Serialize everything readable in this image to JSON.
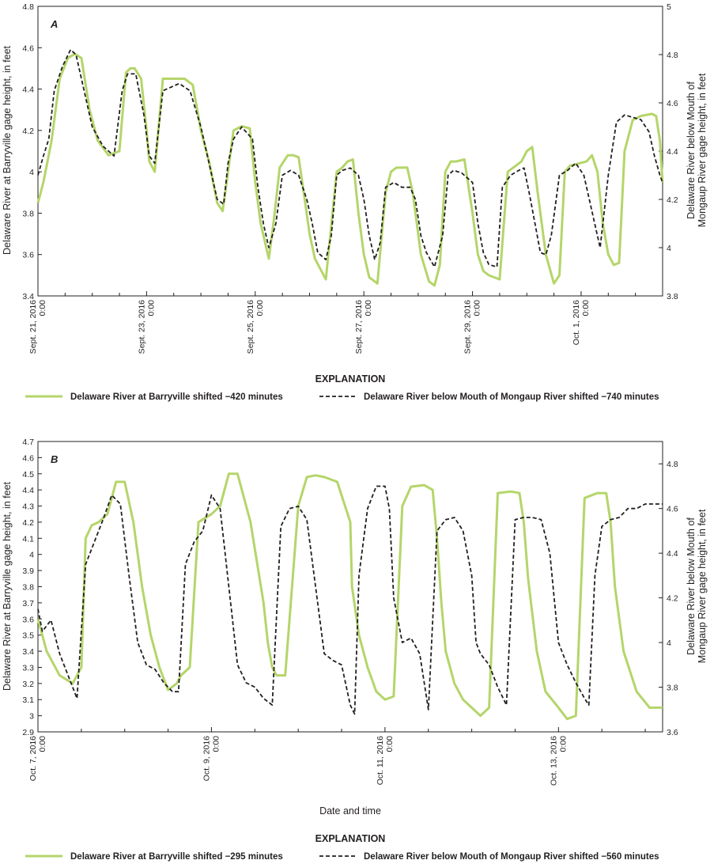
{
  "colors": {
    "barryville": "#b5d56a",
    "mongaup": "#231f20",
    "axis": "#231f20"
  },
  "chart_data": [
    {
      "type": "line",
      "panel_label": "A",
      "x_unit": "days since Sept. 21, 2016 0:00",
      "xlim": [
        0,
        11.5
      ],
      "xticks": [
        {
          "x": 0,
          "line1": "Sept. 21, 2016",
          "line2": "0:00"
        },
        {
          "x": 2,
          "line1": "Sept. 23, 2016",
          "line2": "0:00"
        },
        {
          "x": 4,
          "line1": "Sept. 25, 2016",
          "line2": "0:00"
        },
        {
          "x": 6,
          "line1": "Sept. 27, 2016",
          "line2": "0:00"
        },
        {
          "x": 8,
          "line1": "Sept. 29, 2016",
          "line2": "0:00"
        },
        {
          "x": 10,
          "line1": "Oct. 1, 2016",
          "line2": "0:00"
        }
      ],
      "ylabel_left": "Delaware River at Barryville gage height, in feet",
      "ylim_left": [
        3.4,
        4.8
      ],
      "yticks_left": [
        "3.4",
        "3.6",
        "3.8",
        "4",
        "4.2",
        "4.4",
        "4.6",
        "4.8"
      ],
      "ylabel_right": [
        "Delaware River below Mouth of",
        "Mongaup River gage height, in feet"
      ],
      "ylim_right": [
        3.8,
        5.0
      ],
      "yticks_right": [
        "3.8",
        "4",
        "4.2",
        "4.4",
        "4.6",
        "4.8",
        "5"
      ],
      "legend_title": "EXPLANATION",
      "series": [
        {
          "name": "Delaware River at Barryville shifted −420 minutes",
          "axis": "left",
          "x": [
            0,
            0.1,
            0.25,
            0.4,
            0.55,
            0.68,
            0.8,
            0.95,
            1.1,
            1.3,
            1.5,
            1.62,
            1.7,
            1.78,
            1.9,
            2.0,
            2.05,
            2.15,
            2.3,
            2.5,
            2.7,
            2.85,
            3.0,
            3.15,
            3.3,
            3.4,
            3.5,
            3.6,
            3.75,
            3.9,
            4.0,
            4.1,
            4.25,
            4.35,
            4.45,
            4.6,
            4.7,
            4.8,
            4.92,
            5.0,
            5.1,
            5.3,
            5.5,
            5.6,
            5.7,
            5.8,
            5.9,
            6.0,
            6.1,
            6.25,
            6.4,
            6.5,
            6.6,
            6.7,
            6.8,
            6.9,
            7.05,
            7.2,
            7.3,
            7.4,
            7.5,
            7.6,
            7.7,
            7.85,
            8.0,
            8.1,
            8.2,
            8.3,
            8.5,
            8.65,
            8.8,
            8.9,
            9.0,
            9.1,
            9.2,
            9.35,
            9.5,
            9.6,
            9.7,
            9.8,
            9.95,
            10.1,
            10.2,
            10.3,
            10.4,
            10.5,
            10.6,
            10.7,
            10.8,
            10.95,
            11.1,
            11.3,
            11.38,
            11.45,
            11.5
          ],
          "y": [
            3.85,
            3.95,
            4.15,
            4.45,
            4.55,
            4.57,
            4.55,
            4.3,
            4.15,
            4.08,
            4.1,
            4.48,
            4.5,
            4.5,
            4.45,
            4.2,
            4.05,
            4.0,
            4.45,
            4.45,
            4.45,
            4.42,
            4.2,
            4.05,
            3.85,
            3.81,
            4.0,
            4.2,
            4.22,
            4.21,
            3.95,
            3.75,
            3.58,
            3.78,
            4.02,
            4.08,
            4.08,
            4.07,
            3.85,
            3.7,
            3.58,
            3.48,
            4.0,
            4.02,
            4.05,
            4.06,
            3.8,
            3.6,
            3.49,
            3.46,
            3.9,
            4.0,
            4.02,
            4.02,
            4.02,
            3.9,
            3.6,
            3.47,
            3.45,
            3.55,
            4.0,
            4.05,
            4.05,
            4.06,
            3.8,
            3.6,
            3.52,
            3.5,
            3.48,
            4.0,
            4.03,
            4.05,
            4.1,
            4.12,
            3.9,
            3.6,
            3.46,
            3.5,
            4.0,
            4.03,
            4.04,
            4.05,
            4.08,
            4.0,
            3.75,
            3.6,
            3.55,
            3.56,
            4.1,
            4.25,
            4.27,
            4.28,
            4.27,
            4.15,
            3.95
          ]
        },
        {
          "name": "Delaware River below Mouth of Mongaup River shifted −740 minutes",
          "axis": "right",
          "dashed": true,
          "x": [
            0,
            0.1,
            0.2,
            0.3,
            0.45,
            0.6,
            0.7,
            0.85,
            1.0,
            1.2,
            1.4,
            1.55,
            1.65,
            1.8,
            1.95,
            2.05,
            2.15,
            2.3,
            2.6,
            2.8,
            3.0,
            3.15,
            3.3,
            3.42,
            3.5,
            3.6,
            3.75,
            3.95,
            4.05,
            4.15,
            4.25,
            4.38,
            4.5,
            4.65,
            4.8,
            4.95,
            5.05,
            5.15,
            5.3,
            5.4,
            5.5,
            5.6,
            5.75,
            5.9,
            6.0,
            6.1,
            6.2,
            6.3,
            6.4,
            6.55,
            6.7,
            6.85,
            6.95,
            7.05,
            7.15,
            7.3,
            7.45,
            7.55,
            7.65,
            7.8,
            8.0,
            8.1,
            8.2,
            8.3,
            8.45,
            8.55,
            8.7,
            8.85,
            8.95,
            9.05,
            9.15,
            9.25,
            9.35,
            9.45,
            9.6,
            9.75,
            9.9,
            10.05,
            10.15,
            10.25,
            10.35,
            10.5,
            10.65,
            10.8,
            10.95,
            11.1,
            11.25,
            11.35,
            11.45,
            11.5
          ],
          "y": [
            4.3,
            4.38,
            4.45,
            4.65,
            4.75,
            4.82,
            4.8,
            4.65,
            4.5,
            4.42,
            4.38,
            4.65,
            4.72,
            4.72,
            4.55,
            4.38,
            4.35,
            4.65,
            4.68,
            4.65,
            4.5,
            4.35,
            4.2,
            4.18,
            4.35,
            4.45,
            4.5,
            4.45,
            4.25,
            4.1,
            4.0,
            4.1,
            4.3,
            4.32,
            4.3,
            4.2,
            4.1,
            3.98,
            3.95,
            4.05,
            4.3,
            4.32,
            4.33,
            4.3,
            4.2,
            4.05,
            3.95,
            4.02,
            4.25,
            4.27,
            4.25,
            4.25,
            4.2,
            4.05,
            3.98,
            3.92,
            4.05,
            4.3,
            4.32,
            4.31,
            4.27,
            4.1,
            3.98,
            3.93,
            3.92,
            4.25,
            4.3,
            4.32,
            4.33,
            4.22,
            4.1,
            3.98,
            3.97,
            4.05,
            4.3,
            4.32,
            4.35,
            4.3,
            4.2,
            4.1,
            4.0,
            4.3,
            4.52,
            4.55,
            4.54,
            4.53,
            4.48,
            4.38,
            4.3,
            4.27
          ]
        }
      ]
    },
    {
      "type": "line",
      "panel_label": "B",
      "x_unit": "days since Oct. 7, 2016 0:00",
      "xlim": [
        0,
        7.2
      ],
      "xticks": [
        {
          "x": 0,
          "line1": "Oct. 7, 2016",
          "line2": "0:00"
        },
        {
          "x": 2,
          "line1": "Oct. 9, 2016",
          "line2": "0:00"
        },
        {
          "x": 4,
          "line1": "Oct. 11, 2016",
          "line2": "0:00"
        },
        {
          "x": 6,
          "line1": "Oct. 13, 2016",
          "line2": "0:00"
        }
      ],
      "xlabel": "Date and time",
      "ylabel_left": "Delaware River at Barryville gage height, in feet",
      "ylim_left": [
        2.9,
        4.7
      ],
      "yticks_left": [
        "2.9",
        "3",
        "3.1",
        "3.2",
        "3.3",
        "3.4",
        "3.5",
        "3.6",
        "3.7",
        "3.8",
        "3.9",
        "4",
        "4.1",
        "4.2",
        "4.3",
        "4.4",
        "4.5",
        "4.6",
        "4.7"
      ],
      "ylabel_right": [
        "Delaware River below Mouth of",
        "Mongaup River gage height, in feet"
      ],
      "ylim_right": [
        3.6,
        4.9
      ],
      "yticks_right": [
        "3.6",
        "3.8",
        "4",
        "4.2",
        "4.4",
        "4.6",
        "4.8"
      ],
      "legend_title": "EXPLANATION",
      "series": [
        {
          "name": "Delaware River at Barryville shifted −295 minutes",
          "axis": "left",
          "x": [
            0,
            0.1,
            0.25,
            0.4,
            0.5,
            0.55,
            0.62,
            0.7,
            0.8,
            0.9,
            1.0,
            1.1,
            1.2,
            1.3,
            1.4,
            1.5,
            1.55,
            1.6,
            1.65,
            1.75,
            1.85,
            2.0,
            2.1,
            2.2,
            2.3,
            2.45,
            2.6,
            2.65,
            2.7,
            2.75,
            2.85,
            3.0,
            3.1,
            3.2,
            3.3,
            3.45,
            3.6,
            3.62,
            3.7,
            3.8,
            3.9,
            4.0,
            4.1,
            4.2,
            4.3,
            4.45,
            4.55,
            4.6,
            4.65,
            4.7,
            4.8,
            4.9,
            5.0,
            5.1,
            5.2,
            5.3,
            5.45,
            5.55,
            5.6,
            5.65,
            5.75,
            5.85,
            6.0,
            6.1,
            6.2,
            6.3,
            6.45,
            6.55,
            6.6,
            6.65,
            6.75,
            6.9,
            7.05,
            7.2
          ],
          "y": [
            3.6,
            3.4,
            3.25,
            3.2,
            3.3,
            4.1,
            4.18,
            4.2,
            4.25,
            4.45,
            4.45,
            4.2,
            3.8,
            3.5,
            3.3,
            3.16,
            3.18,
            3.2,
            3.25,
            3.3,
            4.2,
            4.25,
            4.3,
            4.5,
            4.5,
            4.2,
            3.7,
            3.45,
            3.3,
            3.25,
            3.25,
            4.3,
            4.48,
            4.49,
            4.48,
            4.45,
            4.2,
            3.8,
            3.5,
            3.3,
            3.15,
            3.1,
            3.12,
            4.3,
            4.42,
            4.43,
            4.4,
            4.1,
            3.7,
            3.4,
            3.2,
            3.1,
            3.05,
            3.0,
            3.05,
            4.38,
            4.39,
            4.38,
            4.2,
            3.85,
            3.4,
            3.15,
            3.05,
            2.98,
            3.0,
            4.35,
            4.38,
            4.38,
            4.2,
            3.8,
            3.4,
            3.15,
            3.05,
            3.05
          ]
        },
        {
          "name": "Delaware River below Mouth of Mongaup River shifted −560 minutes",
          "axis": "right",
          "dashed": true,
          "x": [
            0,
            0.05,
            0.15,
            0.25,
            0.35,
            0.45,
            0.55,
            0.65,
            0.75,
            0.85,
            0.95,
            1.05,
            1.15,
            1.25,
            1.35,
            1.45,
            1.55,
            1.62,
            1.7,
            1.8,
            1.9,
            2.0,
            2.1,
            2.2,
            2.3,
            2.4,
            2.5,
            2.6,
            2.7,
            2.8,
            2.9,
            3.0,
            3.1,
            3.2,
            3.3,
            3.4,
            3.5,
            3.6,
            3.65,
            3.7,
            3.8,
            3.9,
            4.0,
            4.05,
            4.1,
            4.2,
            4.3,
            4.4,
            4.5,
            4.6,
            4.7,
            4.8,
            4.9,
            5.0,
            5.05,
            5.1,
            5.2,
            5.3,
            5.4,
            5.5,
            5.6,
            5.7,
            5.8,
            5.9,
            6.0,
            6.1,
            6.2,
            6.3,
            6.35,
            6.42,
            6.5,
            6.6,
            6.7,
            6.8,
            6.9,
            7.0,
            7.1,
            7.2
          ],
          "y": [
            4.15,
            4.05,
            4.1,
            3.95,
            3.85,
            3.75,
            4.35,
            4.45,
            4.55,
            4.66,
            4.62,
            4.3,
            4.0,
            3.9,
            3.88,
            3.82,
            3.78,
            3.78,
            4.35,
            4.45,
            4.5,
            4.66,
            4.6,
            4.25,
            3.9,
            3.82,
            3.8,
            3.75,
            3.72,
            4.52,
            4.6,
            4.61,
            4.55,
            4.25,
            3.95,
            3.92,
            3.9,
            3.72,
            3.68,
            4.3,
            4.6,
            4.7,
            4.7,
            4.6,
            4.2,
            4.0,
            4.02,
            3.95,
            3.7,
            4.5,
            4.55,
            4.56,
            4.5,
            4.3,
            4.0,
            3.95,
            3.9,
            3.8,
            3.72,
            4.55,
            4.56,
            4.56,
            4.55,
            4.4,
            4.0,
            3.9,
            3.82,
            3.75,
            3.72,
            4.3,
            4.52,
            4.55,
            4.56,
            4.6,
            4.6,
            4.62,
            4.62,
            4.62
          ]
        }
      ]
    }
  ]
}
